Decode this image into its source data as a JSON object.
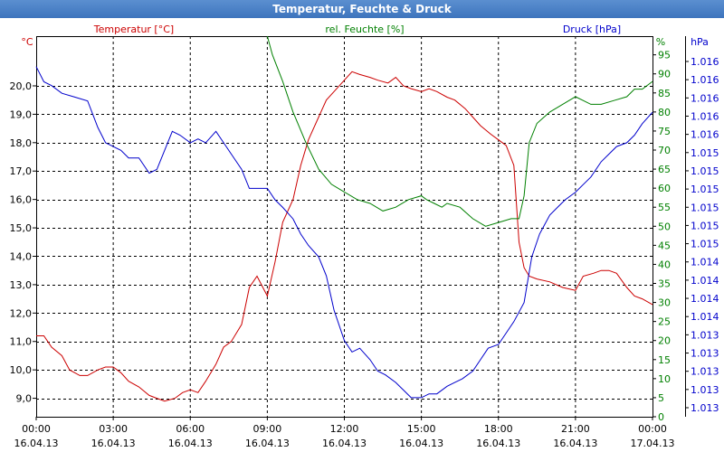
{
  "window": {
    "title": "Temperatur, Feuchte & Druck"
  },
  "chart_data": {
    "type": "line",
    "xlabel": "",
    "x_ticks": [
      {
        "time": "00:00",
        "date": "16.04.13"
      },
      {
        "time": "03:00",
        "date": "16.04.13"
      },
      {
        "time": "06:00",
        "date": "16.04.13"
      },
      {
        "time": "09:00",
        "date": "16.04.13"
      },
      {
        "time": "12:00",
        "date": "16.04.13"
      },
      {
        "time": "15:00",
        "date": "16.04.13"
      },
      {
        "time": "18:00",
        "date": "16.04.13"
      },
      {
        "time": "21:00",
        "date": "16.04.13"
      },
      {
        "time": "00:00",
        "date": "17.04.13"
      }
    ],
    "xlim": [
      0,
      24
    ],
    "grid": true,
    "axes": {
      "temperature": {
        "label": "Temperatur [°C]",
        "unit": "°C",
        "color": "#cc0000",
        "ylim": [
          8.35,
          21.75
        ],
        "ticks": [
          "9,0",
          "10,0",
          "11,0",
          "12,0",
          "13,0",
          "14,0",
          "15,0",
          "16,0",
          "17,0",
          "18,0",
          "19,0",
          "20,0"
        ],
        "tick_values": [
          9,
          10,
          11,
          12,
          13,
          14,
          15,
          16,
          17,
          18,
          19,
          20
        ]
      },
      "humidity": {
        "label": "rel. Feuchte [%]",
        "unit": "%",
        "color": "#008000",
        "ylim": [
          0,
          99.9
        ],
        "ticks": [
          "0",
          "5",
          "10",
          "15",
          "20",
          "25",
          "30",
          "35",
          "40",
          "45",
          "50",
          "55",
          "60",
          "65",
          "70",
          "75",
          "80",
          "85",
          "90",
          "95"
        ],
        "tick_values": [
          0,
          5,
          10,
          15,
          20,
          25,
          30,
          35,
          40,
          45,
          50,
          55,
          60,
          65,
          70,
          75,
          80,
          85,
          90,
          95
        ]
      },
      "pressure": {
        "label": "Druck [hPa]",
        "unit": "hPa",
        "color": "#0000cc",
        "ylim": [
          0,
          1
        ],
        "ticks": [
          "1.013",
          "1.013",
          "1.013",
          "1.013",
          "1.013",
          "1.014",
          "1.014",
          "1.014",
          "1.014",
          "1.015",
          "1.015",
          "1.015",
          "1.015",
          "1.015",
          "1.015",
          "1.016",
          "1.016",
          "1.016",
          "1.016",
          "1.016"
        ]
      }
    },
    "series": [
      {
        "name": "Temperatur [°C]",
        "axis": "temperature",
        "color": "#cc0000",
        "x": [
          0,
          0.3,
          0.6,
          1,
          1.3,
          1.7,
          2,
          2.4,
          2.7,
          3,
          3.3,
          3.6,
          4,
          4.4,
          4.7,
          5,
          5.4,
          5.7,
          6,
          6.3,
          6.6,
          7,
          7.3,
          7.6,
          8,
          8.3,
          8.6,
          9,
          9.3,
          9.6,
          10,
          10.3,
          10.6,
          11,
          11.3,
          11.6,
          12,
          12.3,
          12.6,
          13,
          13.3,
          13.7,
          14,
          14.3,
          14.6,
          15,
          15.3,
          15.6,
          16,
          16.3,
          16.7,
          17,
          17.3,
          17.7,
          18,
          18.3,
          18.6,
          18.8,
          19,
          19.2,
          19.5,
          20,
          20.5,
          21,
          21.3,
          21.7,
          22,
          22.3,
          22.6,
          23,
          23.3,
          23.6,
          24
        ],
        "values": [
          11.2,
          11.2,
          10.8,
          10.5,
          10.0,
          9.8,
          9.8,
          10.0,
          10.1,
          10.1,
          9.9,
          9.6,
          9.4,
          9.1,
          9.0,
          8.9,
          9.0,
          9.2,
          9.3,
          9.2,
          9.6,
          10.2,
          10.8,
          11.0,
          11.6,
          12.9,
          13.3,
          12.6,
          13.8,
          15.2,
          16.0,
          17.2,
          18.1,
          18.9,
          19.5,
          19.8,
          20.2,
          20.5,
          20.4,
          20.3,
          20.2,
          20.1,
          20.3,
          20.0,
          19.9,
          19.8,
          19.9,
          19.8,
          19.6,
          19.5,
          19.2,
          18.9,
          18.6,
          18.3,
          18.1,
          17.9,
          17.2,
          14.5,
          13.6,
          13.3,
          13.2,
          13.1,
          12.9,
          12.8,
          13.3,
          13.4,
          13.5,
          13.5,
          13.4,
          12.9,
          12.6,
          12.5,
          12.3
        ]
      },
      {
        "name": "rel. Feuchte [%]",
        "axis": "humidity",
        "color": "#008000",
        "x": [
          9,
          9.2,
          9.6,
          10,
          10.5,
          11,
          11.5,
          12,
          12.5,
          13,
          13.5,
          14,
          14.5,
          15,
          15.2,
          15.5,
          15.8,
          16,
          16.5,
          17,
          17.5,
          18,
          18.5,
          18.8,
          19,
          19.2,
          19.5,
          20,
          20.5,
          21,
          21.3,
          21.6,
          22,
          22.5,
          23,
          23.3,
          23.6,
          24
        ],
        "values": [
          99.9,
          95,
          88,
          80,
          72,
          65,
          61,
          59,
          57,
          56,
          54,
          55,
          57,
          58,
          57,
          56,
          55,
          56,
          55,
          52,
          50,
          51,
          52,
          52,
          58,
          72,
          77,
          80,
          82,
          84,
          83,
          82,
          82,
          83,
          84,
          86,
          86,
          88
        ]
      },
      {
        "name": "Druck [hPa]",
        "axis": "pressure",
        "color": "#0000cc",
        "x": [
          0,
          0.3,
          0.6,
          1,
          1.5,
          2,
          2.4,
          2.7,
          3,
          3.3,
          3.6,
          4,
          4.4,
          4.7,
          5,
          5.3,
          5.6,
          6,
          6.3,
          6.6,
          7,
          7.3,
          7.6,
          8,
          8.3,
          8.6,
          9,
          9.3,
          9.6,
          10,
          10.3,
          10.6,
          11,
          11.3,
          11.6,
          12,
          12.3,
          12.6,
          13,
          13.3,
          13.6,
          14,
          14.3,
          14.6,
          15,
          15.3,
          15.6,
          16,
          16.3,
          16.6,
          17,
          17.3,
          17.6,
          18,
          18.3,
          18.6,
          19,
          19.3,
          19.6,
          20,
          20.3,
          20.6,
          21,
          21.3,
          21.6,
          22,
          22.3,
          22.6,
          23,
          23.3,
          23.6,
          24
        ],
        "values": [
          0.92,
          0.88,
          0.87,
          0.85,
          0.84,
          0.83,
          0.76,
          0.72,
          0.71,
          0.7,
          0.68,
          0.68,
          0.64,
          0.65,
          0.7,
          0.75,
          0.74,
          0.72,
          0.73,
          0.72,
          0.75,
          0.72,
          0.69,
          0.65,
          0.6,
          0.6,
          0.6,
          0.57,
          0.55,
          0.52,
          0.48,
          0.45,
          0.42,
          0.37,
          0.28,
          0.2,
          0.17,
          0.18,
          0.15,
          0.12,
          0.11,
          0.09,
          0.07,
          0.05,
          0.05,
          0.06,
          0.06,
          0.08,
          0.09,
          0.1,
          0.12,
          0.15,
          0.18,
          0.19,
          0.22,
          0.25,
          0.3,
          0.42,
          0.48,
          0.53,
          0.55,
          0.57,
          0.59,
          0.61,
          0.63,
          0.67,
          0.69,
          0.71,
          0.72,
          0.74,
          0.77,
          0.8
        ]
      }
    ]
  }
}
